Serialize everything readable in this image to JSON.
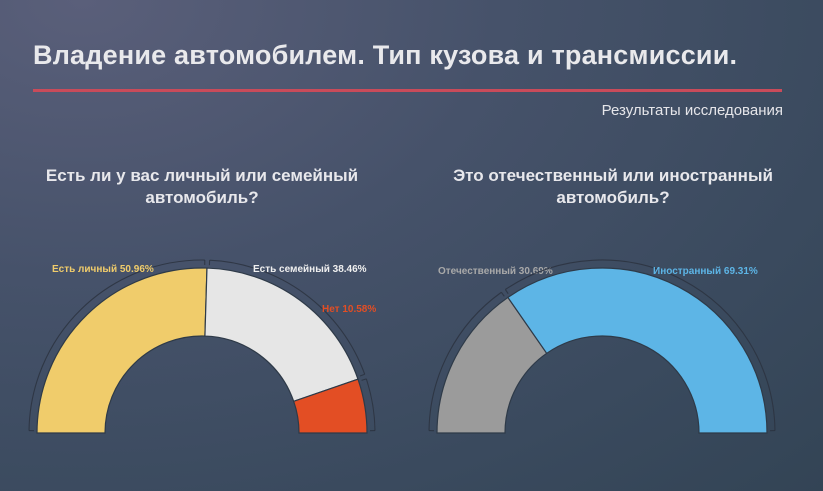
{
  "header": {
    "title": "Владение автомобилем. Тип кузова и трансмиссии.",
    "subtitle": "Результаты исследования"
  },
  "colors": {
    "divider": "#c94b5a"
  },
  "chart_data": [
    {
      "type": "pie",
      "title": "Есть ли у вас личный или семейный автомобиль?",
      "categories": [
        "Есть личный",
        "Есть семейный",
        "Нет"
      ],
      "values": [
        50.96,
        38.46,
        10.58
      ],
      "labels": [
        "Есть личный 50.96%",
        "Есть семейный 38.46%",
        "Нет 10.58%"
      ],
      "colors": [
        "#f0cc6b",
        "#e6e6e6",
        "#e34e24"
      ],
      "label_colors": [
        "#f0cc6b",
        "#f0f0f0",
        "#e34e24"
      ]
    },
    {
      "type": "pie",
      "title": "Это отечественный или иностранный автомобиль?",
      "categories": [
        "Отечественный",
        "Иностранный"
      ],
      "values": [
        30.69,
        69.31
      ],
      "labels": [
        "Отечественный 30.69%",
        "Иностранный 69.31%"
      ],
      "colors": [
        "#9b9b9b",
        "#5db5e6"
      ],
      "label_colors": [
        "#a9a9a9",
        "#5db5e6"
      ]
    }
  ]
}
